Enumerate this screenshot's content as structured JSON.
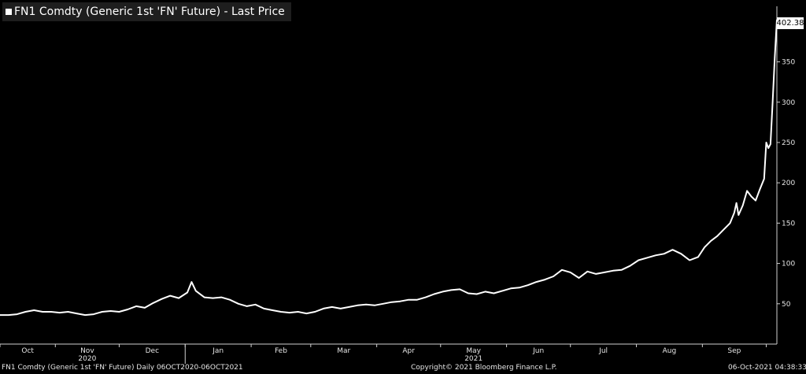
{
  "header": {
    "title": "FN1 Comdty (Generic 1st 'FN' Future) - Last Price"
  },
  "footer": {
    "left": "FN1 Comdty (Generic 1st 'FN' Future)  Daily 06OCT2020-06OCT2021",
    "center": "Copyright© 2021 Bloomberg Finance L.P.",
    "right": "06-Oct-2021 04:38:33"
  },
  "last_price_label": "402.38",
  "colors": {
    "background": "#000000",
    "line": "#ffffff",
    "title_box": "#1e1e1e"
  },
  "chart_data": {
    "type": "line",
    "title": "FN1 Comdty (Generic 1st 'FN' Future) - Last Price",
    "xlabel": "",
    "ylabel": "",
    "x_tick_labels": [
      "Oct",
      "Nov",
      "Dec",
      "Jan",
      "Feb",
      "Mar",
      "Apr",
      "May",
      "Jun",
      "Jul",
      "Aug",
      "Sep"
    ],
    "x_year_labels": [
      "2020",
      "2021"
    ],
    "y_tick_labels": [
      "50",
      "100",
      "150",
      "200",
      "250",
      "300",
      "350"
    ],
    "y_ticks": [
      50,
      100,
      150,
      200,
      250,
      300,
      350
    ],
    "ylim": [
      0,
      415
    ],
    "xlim": [
      "2020-10-06",
      "2021-10-06"
    ],
    "grid": false,
    "last_value": 402.38,
    "series": [
      {
        "values": [
          [
            "2020-10-06",
            36
          ],
          [
            "2020-10-10",
            36
          ],
          [
            "2020-10-14",
            37
          ],
          [
            "2020-10-18",
            40
          ],
          [
            "2020-10-22",
            42
          ],
          [
            "2020-10-26",
            40
          ],
          [
            "2020-10-30",
            40
          ],
          [
            "2020-11-03",
            39
          ],
          [
            "2020-11-07",
            40
          ],
          [
            "2020-11-11",
            38
          ],
          [
            "2020-11-15",
            36
          ],
          [
            "2020-11-19",
            37
          ],
          [
            "2020-11-23",
            40
          ],
          [
            "2020-11-27",
            41
          ],
          [
            "2020-12-01",
            40
          ],
          [
            "2020-12-05",
            43
          ],
          [
            "2020-12-09",
            47
          ],
          [
            "2020-12-13",
            45
          ],
          [
            "2020-12-17",
            51
          ],
          [
            "2020-12-21",
            56
          ],
          [
            "2020-12-25",
            60
          ],
          [
            "2020-12-29",
            57
          ],
          [
            "2021-01-02",
            64
          ],
          [
            "2021-01-04",
            77
          ],
          [
            "2021-01-06",
            66
          ],
          [
            "2021-01-10",
            58
          ],
          [
            "2021-01-14",
            57
          ],
          [
            "2021-01-18",
            58
          ],
          [
            "2021-01-22",
            55
          ],
          [
            "2021-01-26",
            50
          ],
          [
            "2021-01-30",
            47
          ],
          [
            "2021-02-03",
            49
          ],
          [
            "2021-02-07",
            44
          ],
          [
            "2021-02-11",
            42
          ],
          [
            "2021-02-15",
            40
          ],
          [
            "2021-02-19",
            39
          ],
          [
            "2021-02-23",
            40
          ],
          [
            "2021-02-27",
            38
          ],
          [
            "2021-03-03",
            40
          ],
          [
            "2021-03-07",
            44
          ],
          [
            "2021-03-11",
            46
          ],
          [
            "2021-03-15",
            44
          ],
          [
            "2021-03-19",
            46
          ],
          [
            "2021-03-23",
            48
          ],
          [
            "2021-03-27",
            49
          ],
          [
            "2021-03-31",
            48
          ],
          [
            "2021-04-04",
            50
          ],
          [
            "2021-04-08",
            52
          ],
          [
            "2021-04-12",
            53
          ],
          [
            "2021-04-16",
            55
          ],
          [
            "2021-04-20",
            55
          ],
          [
            "2021-04-24",
            58
          ],
          [
            "2021-04-28",
            62
          ],
          [
            "2021-05-02",
            65
          ],
          [
            "2021-05-06",
            67
          ],
          [
            "2021-05-10",
            68
          ],
          [
            "2021-05-14",
            63
          ],
          [
            "2021-05-18",
            62
          ],
          [
            "2021-05-22",
            65
          ],
          [
            "2021-05-26",
            63
          ],
          [
            "2021-05-30",
            66
          ],
          [
            "2021-06-03",
            69
          ],
          [
            "2021-06-07",
            70
          ],
          [
            "2021-06-11",
            73
          ],
          [
            "2021-06-15",
            77
          ],
          [
            "2021-06-19",
            80
          ],
          [
            "2021-06-23",
            84
          ],
          [
            "2021-06-27",
            92
          ],
          [
            "2021-07-01",
            89
          ],
          [
            "2021-07-05",
            82
          ],
          [
            "2021-07-09",
            90
          ],
          [
            "2021-07-13",
            87
          ],
          [
            "2021-07-17",
            89
          ],
          [
            "2021-07-21",
            91
          ],
          [
            "2021-07-25",
            92
          ],
          [
            "2021-07-29",
            97
          ],
          [
            "2021-08-02",
            104
          ],
          [
            "2021-08-06",
            107
          ],
          [
            "2021-08-10",
            110
          ],
          [
            "2021-08-14",
            112
          ],
          [
            "2021-08-18",
            117
          ],
          [
            "2021-08-22",
            112
          ],
          [
            "2021-08-26",
            104
          ],
          [
            "2021-08-30",
            108
          ],
          [
            "2021-09-02",
            120
          ],
          [
            "2021-09-05",
            128
          ],
          [
            "2021-09-08",
            134
          ],
          [
            "2021-09-11",
            142
          ],
          [
            "2021-09-14",
            150
          ],
          [
            "2021-09-16",
            163
          ],
          [
            "2021-09-17",
            175
          ],
          [
            "2021-09-18",
            160
          ],
          [
            "2021-09-20",
            172
          ],
          [
            "2021-09-22",
            190
          ],
          [
            "2021-09-24",
            183
          ],
          [
            "2021-09-26",
            178
          ],
          [
            "2021-09-28",
            192
          ],
          [
            "2021-09-30",
            205
          ],
          [
            "2021-10-01",
            250
          ],
          [
            "2021-10-02",
            243
          ],
          [
            "2021-10-03",
            248
          ],
          [
            "2021-10-04",
            300
          ],
          [
            "2021-10-05",
            355
          ],
          [
            "2021-10-06",
            402.38
          ]
        ]
      }
    ]
  }
}
